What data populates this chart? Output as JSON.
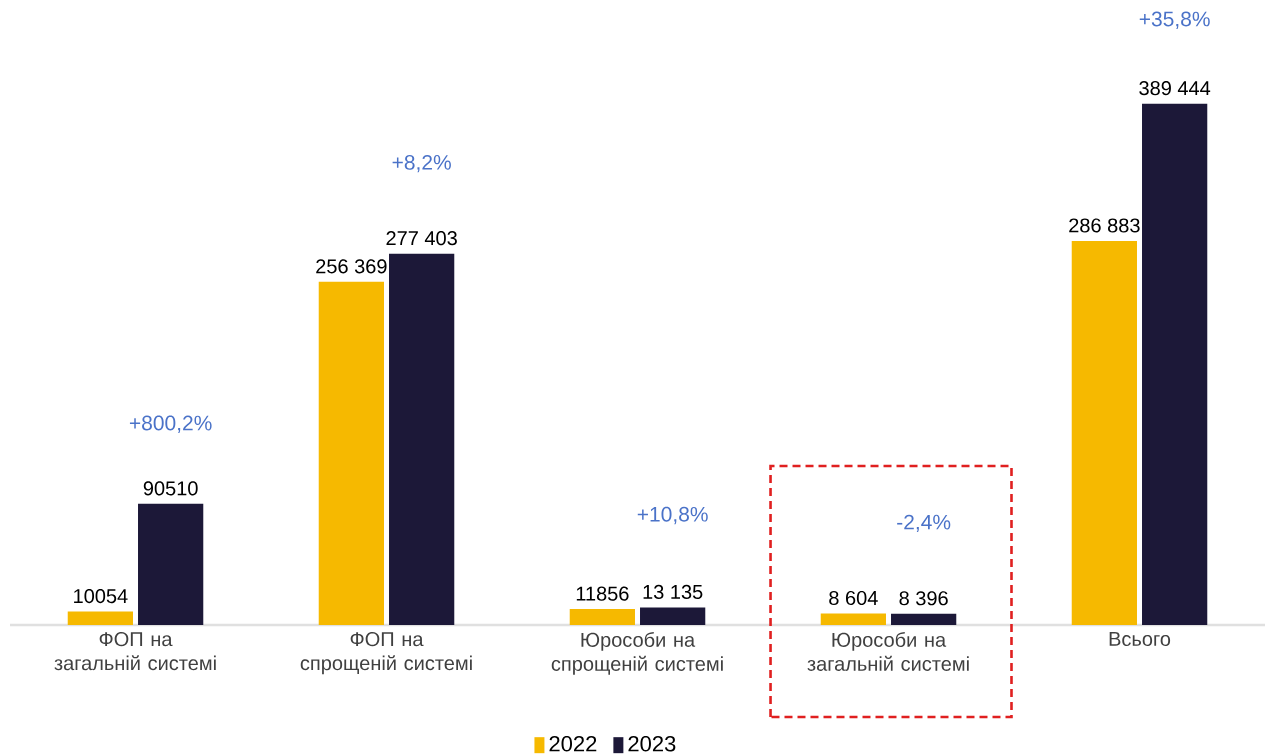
{
  "chart_data": {
    "type": "bar",
    "categories": [
      "ФОП на загальній системі",
      "ФОП на спрощеній системі",
      "Юрособи на спрощеній системі",
      "Юрособи на загальній системі",
      "Всього"
    ],
    "series": [
      {
        "name": "2022",
        "color": "#f6b900",
        "values": [
          10054,
          256369,
          11856,
          8604,
          286883
        ],
        "value_labels": [
          "10054",
          "256 369",
          "11856",
          "8 604",
          "286 883"
        ]
      },
      {
        "name": "2023",
        "color": "#1c1838",
        "values": [
          90510,
          277403,
          13135,
          8396,
          389444
        ],
        "value_labels": [
          "90510",
          "277 403",
          "13 135",
          "8 396",
          "389 444"
        ]
      }
    ],
    "annotations": [
      "+800,2%",
      "+8,2%",
      "+10,8%",
      "-2,4%",
      "+35,8%"
    ],
    "legend": "bottom"
  }
}
